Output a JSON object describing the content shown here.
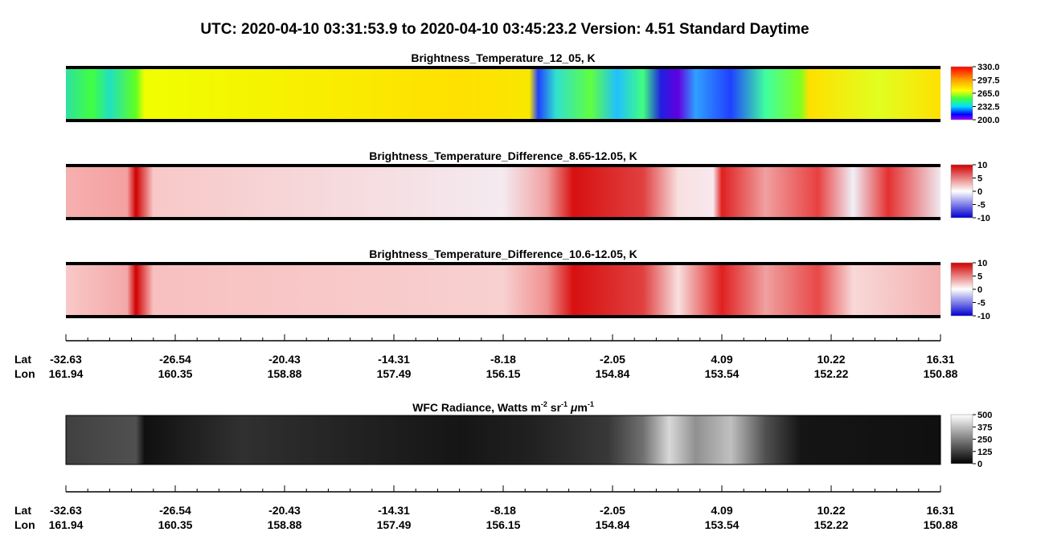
{
  "title": "UTC:  2020-04-10   03:31:53.9  to  2020-04-10   03:45:23.2    Version: 4.51  Standard Daytime",
  "panels": [
    {
      "title": "Brightness_Temperature_12_05, K",
      "colorbar_labels": [
        "330.0",
        "297.5",
        "265.0",
        "232.5",
        "200.0"
      ]
    },
    {
      "title": "Brightness_Temperature_Difference_8.65-12.05, K",
      "colorbar_labels": [
        "10",
        "5",
        "0",
        "-5",
        "-10"
      ]
    },
    {
      "title": "Brightness_Temperature_Difference_10.6-12.05, K",
      "colorbar_labels": [
        "10",
        "5",
        "0",
        "-5",
        "-10"
      ]
    },
    {
      "title_parts": [
        "WFC Radiance, Watts m",
        "-2",
        " sr",
        "-1",
        " ",
        "μ",
        "m",
        "-1"
      ],
      "colorbar_labels": [
        "500",
        "375",
        "250",
        "125",
        "0"
      ]
    }
  ],
  "axes": [
    {
      "lat_label": "Lat",
      "lon_label": "Lon",
      "lat": [
        "-32.63",
        "-26.54",
        "-20.43",
        "-14.31",
        "-8.18",
        "-2.05",
        "4.09",
        "10.22",
        "16.31"
      ],
      "lon": [
        "161.94",
        "160.35",
        "158.88",
        "157.49",
        "156.15",
        "154.84",
        "153.54",
        "152.22",
        "150.88"
      ]
    },
    {
      "lat_label": "Lat",
      "lon_label": "Lon",
      "lat": [
        "-32.63",
        "-26.54",
        "-20.43",
        "-14.31",
        "-8.18",
        "-2.05",
        "4.09",
        "10.22",
        "16.31"
      ],
      "lon": [
        "161.94",
        "160.35",
        "158.88",
        "157.49",
        "156.15",
        "154.84",
        "153.54",
        "152.22",
        "150.88"
      ]
    }
  ]
}
